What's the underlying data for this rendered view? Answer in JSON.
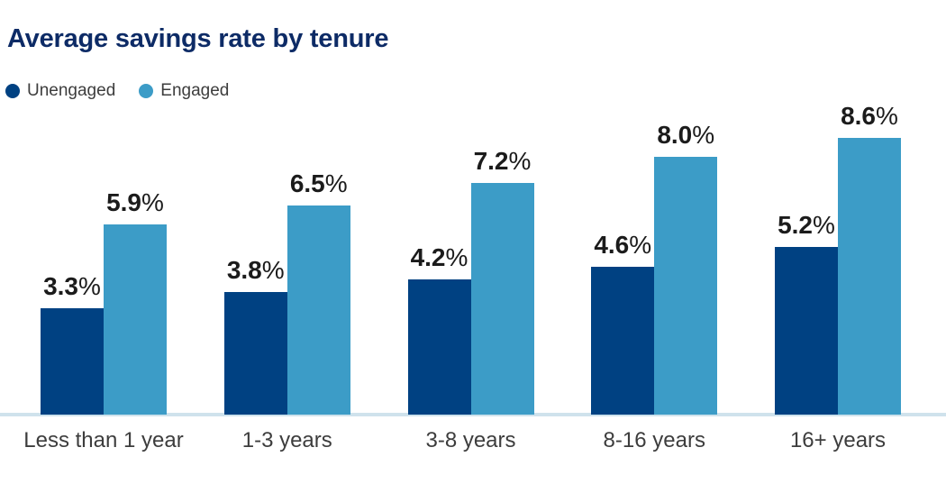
{
  "title": "Average savings rate by tenure",
  "legend": {
    "items": [
      {
        "label": "Unengaged",
        "color": "#004182"
      },
      {
        "label": "Engaged",
        "color": "#3c9cc7"
      }
    ]
  },
  "chart_data": {
    "type": "bar",
    "title": "Average savings rate by tenure",
    "categories": [
      "Less than 1 year",
      "1-3 years",
      "3-8 years",
      "8-16 years",
      "16+ years"
    ],
    "series": [
      {
        "name": "Unengaged",
        "color": "#004182",
        "values": [
          3.3,
          3.8,
          4.2,
          4.6,
          5.2
        ]
      },
      {
        "name": "Engaged",
        "color": "#3c9cc7",
        "values": [
          5.9,
          6.5,
          7.2,
          8.0,
          8.6
        ]
      }
    ],
    "value_suffix": "%",
    "value_decimals": 1,
    "xlabel": "",
    "ylabel": "",
    "ylim": [
      0,
      9
    ],
    "grid": false,
    "axis_visible": "x-only",
    "legend_position": "top-left",
    "data_labels": true,
    "colors": {
      "title_text": "#0d2b66",
      "value_label_text": "#1b1b1b",
      "category_text": "#3d3d3d",
      "legend_text": "#3d3d3d",
      "axis_line": "#cfe2ec",
      "background": "#ffffff"
    }
  }
}
